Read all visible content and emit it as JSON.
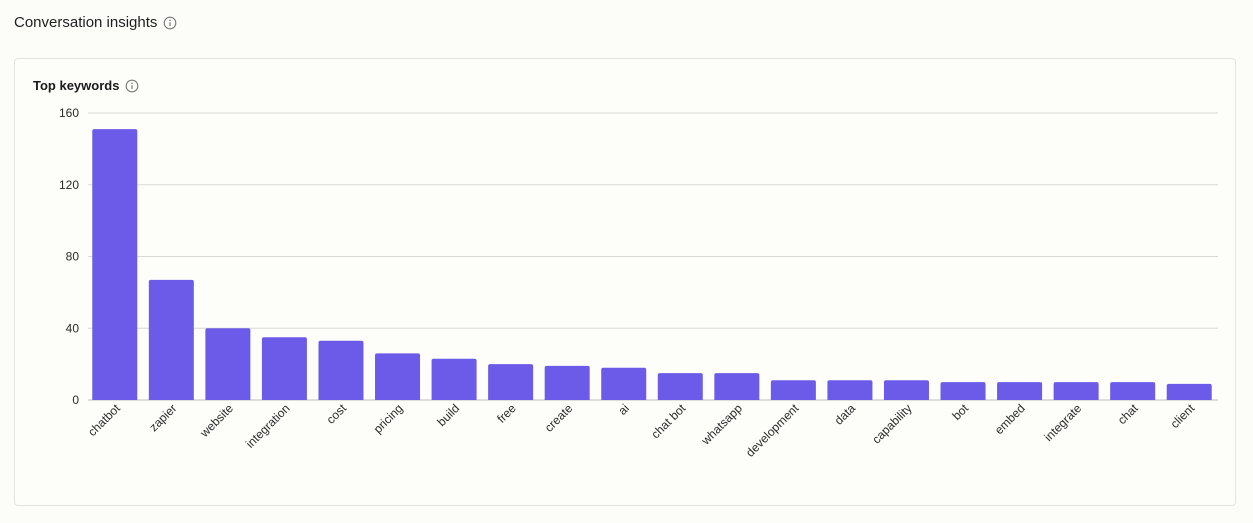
{
  "header": {
    "title": "Conversation insights",
    "info_icon": "info-icon"
  },
  "card": {
    "title": "Top keywords",
    "info_icon": "info-icon"
  },
  "colors": {
    "bar": "#6b5be8",
    "grid": "#d9d9d4",
    "axis": "#bdbdb8"
  },
  "chart_data": {
    "type": "bar",
    "title": "Top keywords",
    "xlabel": "",
    "ylabel": "",
    "ylim": [
      0,
      160
    ],
    "yticks": [
      0,
      40,
      80,
      120,
      160
    ],
    "grid": true,
    "categories": [
      "chatbot",
      "zapier",
      "website",
      "integration",
      "cost",
      "pricing",
      "build",
      "free",
      "create",
      "ai",
      "chat bot",
      "whatsapp",
      "development",
      "data",
      "capability",
      "bot",
      "embed",
      "integrate",
      "chat",
      "client"
    ],
    "values": [
      151,
      67,
      40,
      35,
      33,
      26,
      23,
      20,
      19,
      18,
      15,
      15,
      11,
      11,
      11,
      10,
      10,
      10,
      10,
      9
    ]
  }
}
